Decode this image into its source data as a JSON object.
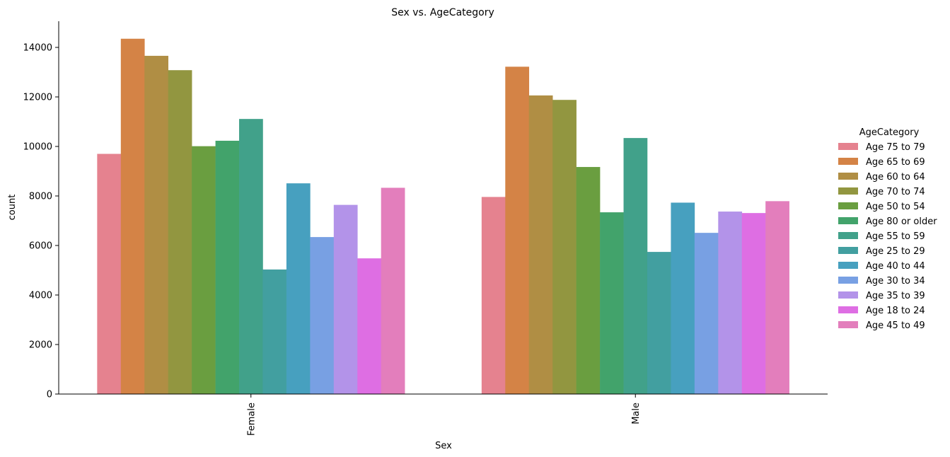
{
  "chart_data": {
    "type": "bar",
    "title": "Sex vs. AgeCategory",
    "xlabel": "Sex",
    "ylabel": "count",
    "categories": [
      "Female",
      "Male"
    ],
    "ylim": [
      0,
      15000
    ],
    "yticks": [
      0,
      2000,
      4000,
      6000,
      8000,
      10000,
      12000,
      14000
    ],
    "grid": false,
    "legend_title": "AgeCategory",
    "legend_position": "right",
    "series": [
      {
        "name": "Age 75 to 79",
        "color": "#e5828f",
        "values": [
          9700,
          7960
        ]
      },
      {
        "name": "Age 65 to 69",
        "color": "#d48346",
        "values": [
          14350,
          13220
        ]
      },
      {
        "name": "Age 60 to 64",
        "color": "#b08e44",
        "values": [
          13660,
          12060
        ]
      },
      {
        "name": "Age 70 to 74",
        "color": "#929640",
        "values": [
          13080,
          11880
        ]
      },
      {
        "name": "Age 50 to 54",
        "color": "#6a9e40",
        "values": [
          10010,
          9170
        ]
      },
      {
        "name": "Age 80 or older",
        "color": "#42a36b",
        "values": [
          10230,
          7340
        ]
      },
      {
        "name": "Age 55 to 59",
        "color": "#41a18a",
        "values": [
          11110,
          10340
        ]
      },
      {
        "name": "Age 25 to 29",
        "color": "#429fa0",
        "values": [
          5030,
          5740
        ]
      },
      {
        "name": "Age 40 to 44",
        "color": "#47a0bf",
        "values": [
          8510,
          7730
        ]
      },
      {
        "name": "Age 30 to 34",
        "color": "#78a0e3",
        "values": [
          6340,
          6510
        ]
      },
      {
        "name": "Age 35 to 39",
        "color": "#b393e9",
        "values": [
          7640,
          7370
        ]
      },
      {
        "name": "Age 18 to 24",
        "color": "#de6ee3",
        "values": [
          5480,
          7310
        ]
      },
      {
        "name": "Age 45 to 49",
        "color": "#e37ebc",
        "values": [
          8330,
          7790
        ]
      }
    ]
  }
}
